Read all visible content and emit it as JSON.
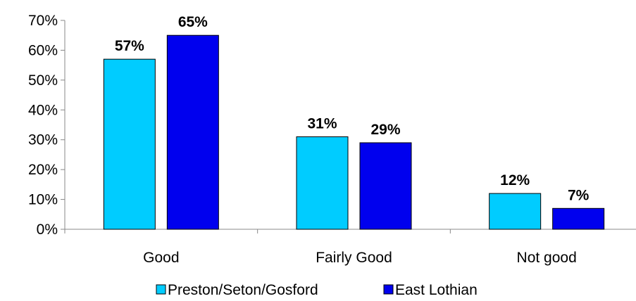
{
  "chart_data": {
    "type": "bar",
    "categories": [
      "Good",
      "Fairly Good",
      "Not good"
    ],
    "series": [
      {
        "name": "Preston/Seton/Gosford",
        "values": [
          57,
          31,
          12
        ],
        "labels": [
          "57%",
          "31%",
          "12%"
        ],
        "color": "#00ccff"
      },
      {
        "name": "East Lothian",
        "values": [
          65,
          29,
          7
        ],
        "labels": [
          "65%",
          "29%",
          "7%"
        ],
        "color": "#0000ee"
      }
    ],
    "ylim": [
      0,
      70
    ],
    "yticks": [
      0,
      10,
      20,
      30,
      40,
      50,
      60,
      70
    ],
    "ytick_labels": [
      "0%",
      "10%",
      "20%",
      "30%",
      "40%",
      "50%",
      "60%",
      "70%"
    ],
    "grid": false,
    "legend_position": "bottom"
  }
}
